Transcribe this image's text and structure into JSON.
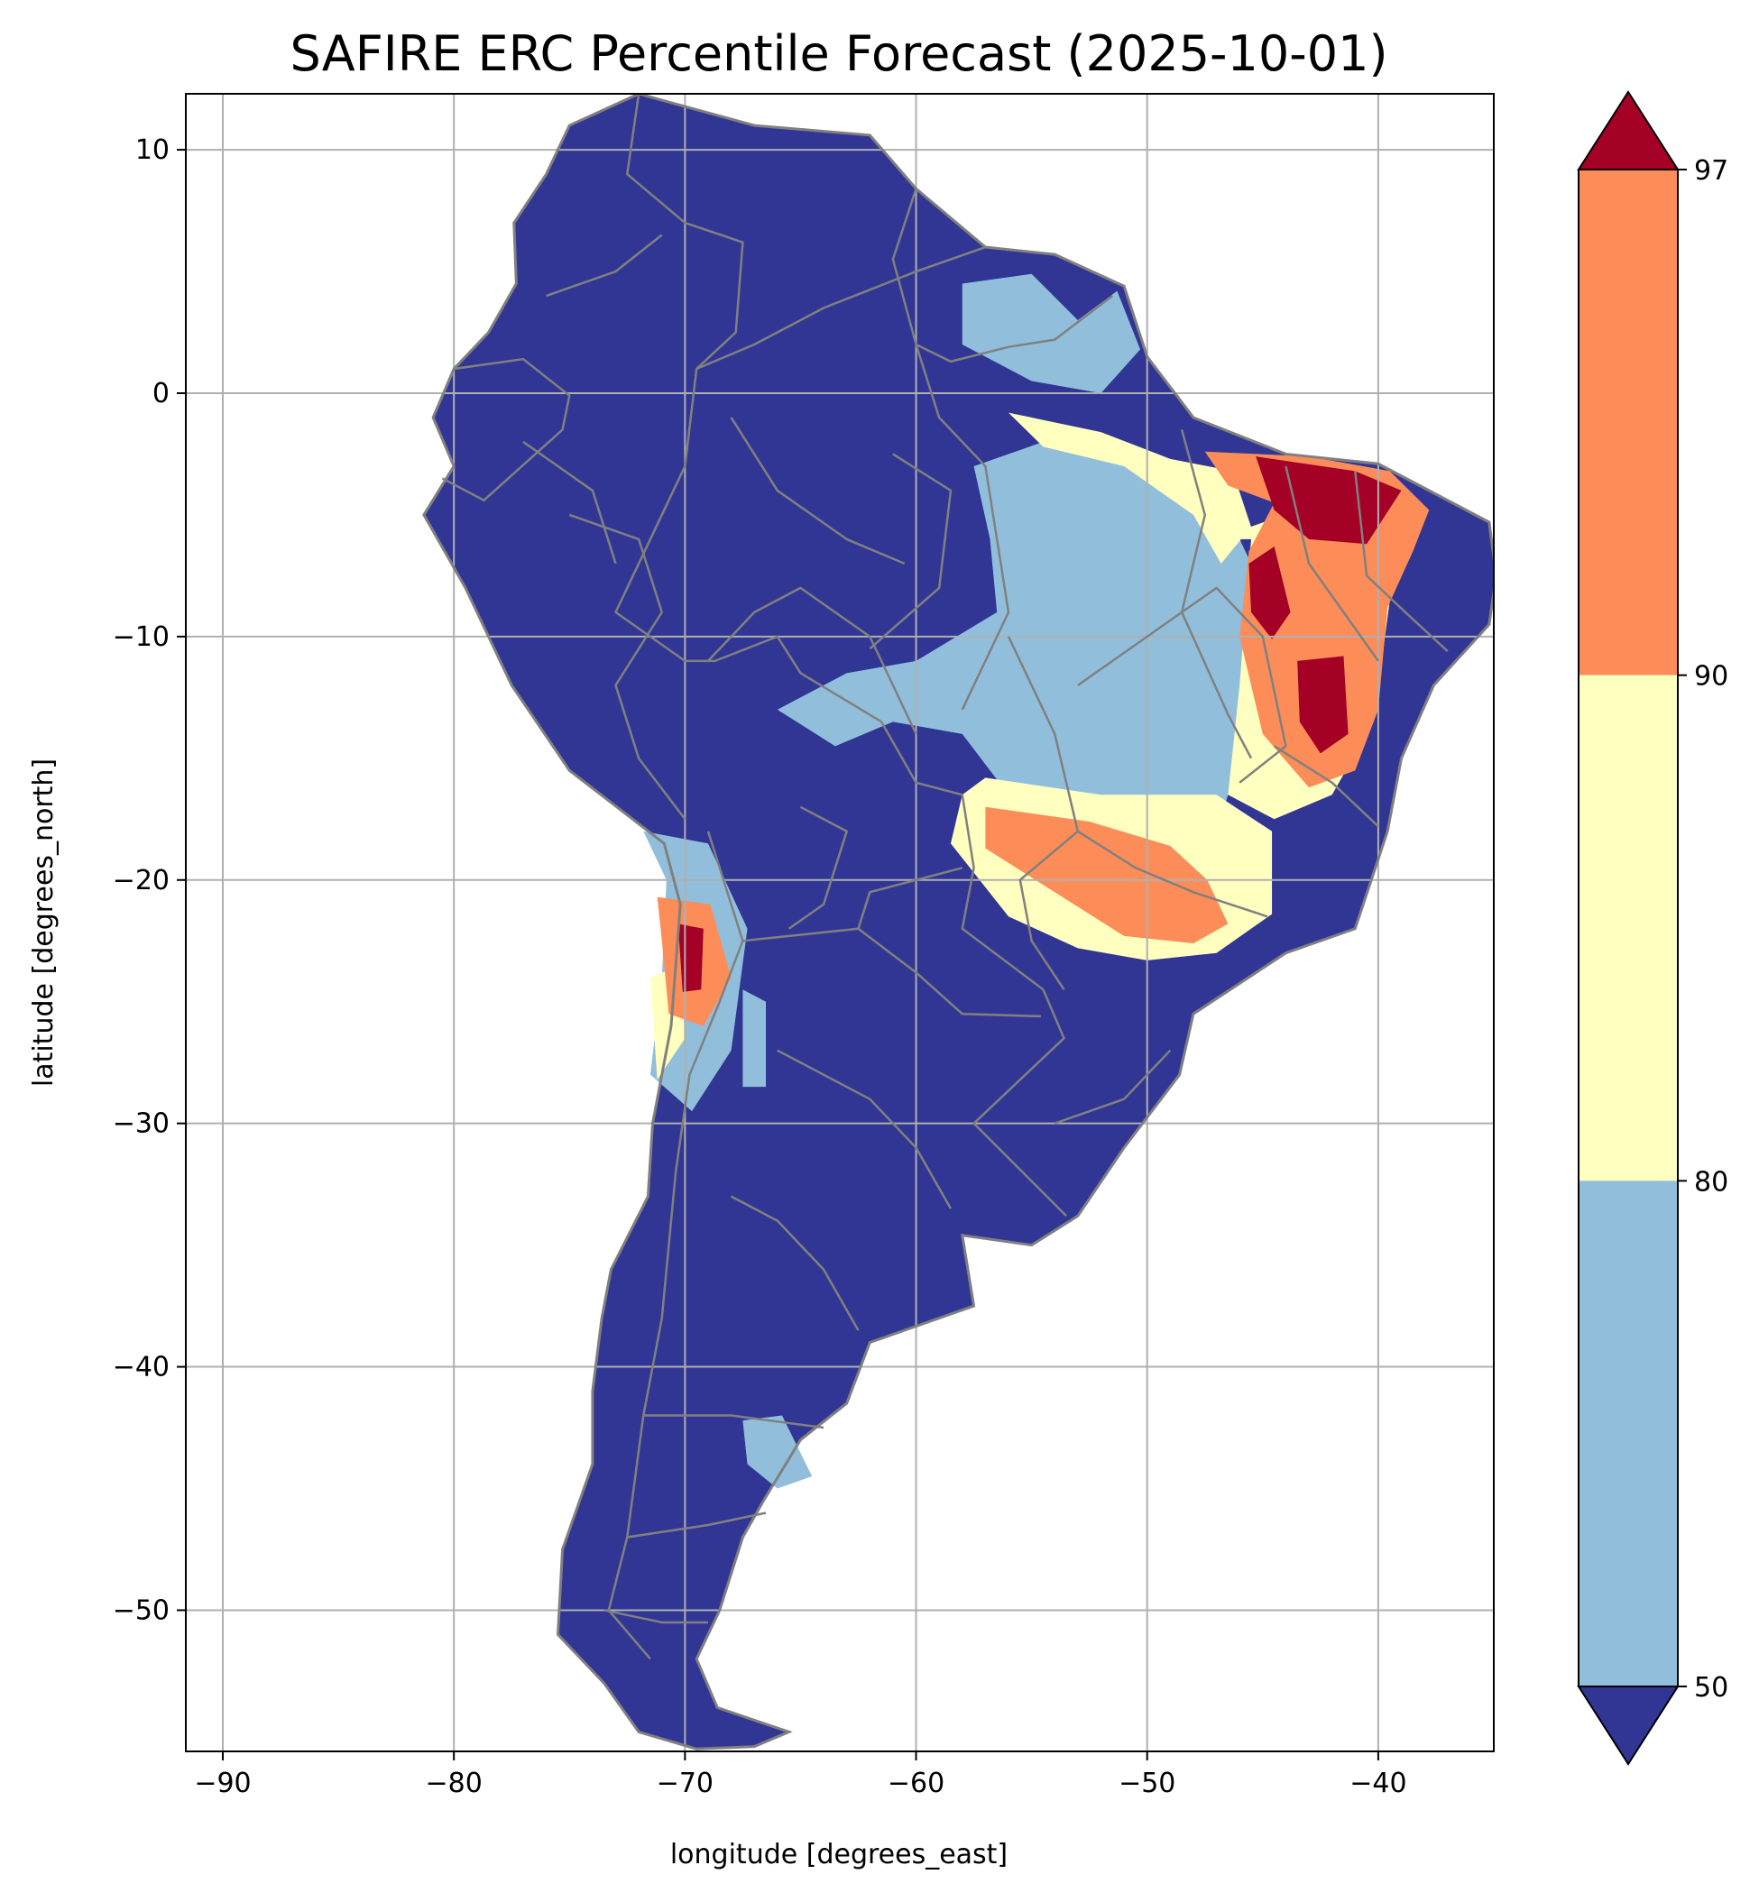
{
  "title": "SAFIRE ERC Percentile Forecast (2025-10-01)",
  "map": {
    "xlabel": "longitude [degrees_east]",
    "ylabel": "latitude [degrees_north]",
    "xlim": [
      -91.6,
      -35.0
    ],
    "ylim": [
      -55.8,
      12.3
    ],
    "x_ticks": [
      -90,
      -80,
      -70,
      -60,
      -50,
      -40
    ],
    "y_ticks": [
      10,
      0,
      -10,
      -20,
      -30,
      -40,
      -50
    ],
    "grid": true,
    "border_color": "#808080",
    "gridline_color": "#b0b0b0"
  },
  "colorbar": {
    "ticks": [
      50,
      80,
      90,
      97
    ],
    "bins": [
      {
        "range": "<50",
        "color": "#313695"
      },
      {
        "range": "50-80",
        "color": "#91bfdb"
      },
      {
        "range": "80-90",
        "color": "#ffffbf"
      },
      {
        "range": "90-97",
        "color": "#fc8d59"
      },
      {
        "range": ">97",
        "color": "#a50026"
      }
    ],
    "extend": "both"
  },
  "regions": [
    {
      "class": "<50",
      "color": "#313695",
      "desc": "continent mainland"
    },
    {
      "class": "50-80",
      "color": "#91bfdb",
      "desc": "central brazil"
    },
    {
      "class": "80-90",
      "color": "#ffffbf",
      "desc": "southeast brazil band"
    },
    {
      "class": "90-97",
      "color": "#fc8d59",
      "desc": "northeast brazil"
    },
    {
      "class": ">97",
      "color": "#a50026",
      "desc": "northeast brazil core"
    }
  ]
}
